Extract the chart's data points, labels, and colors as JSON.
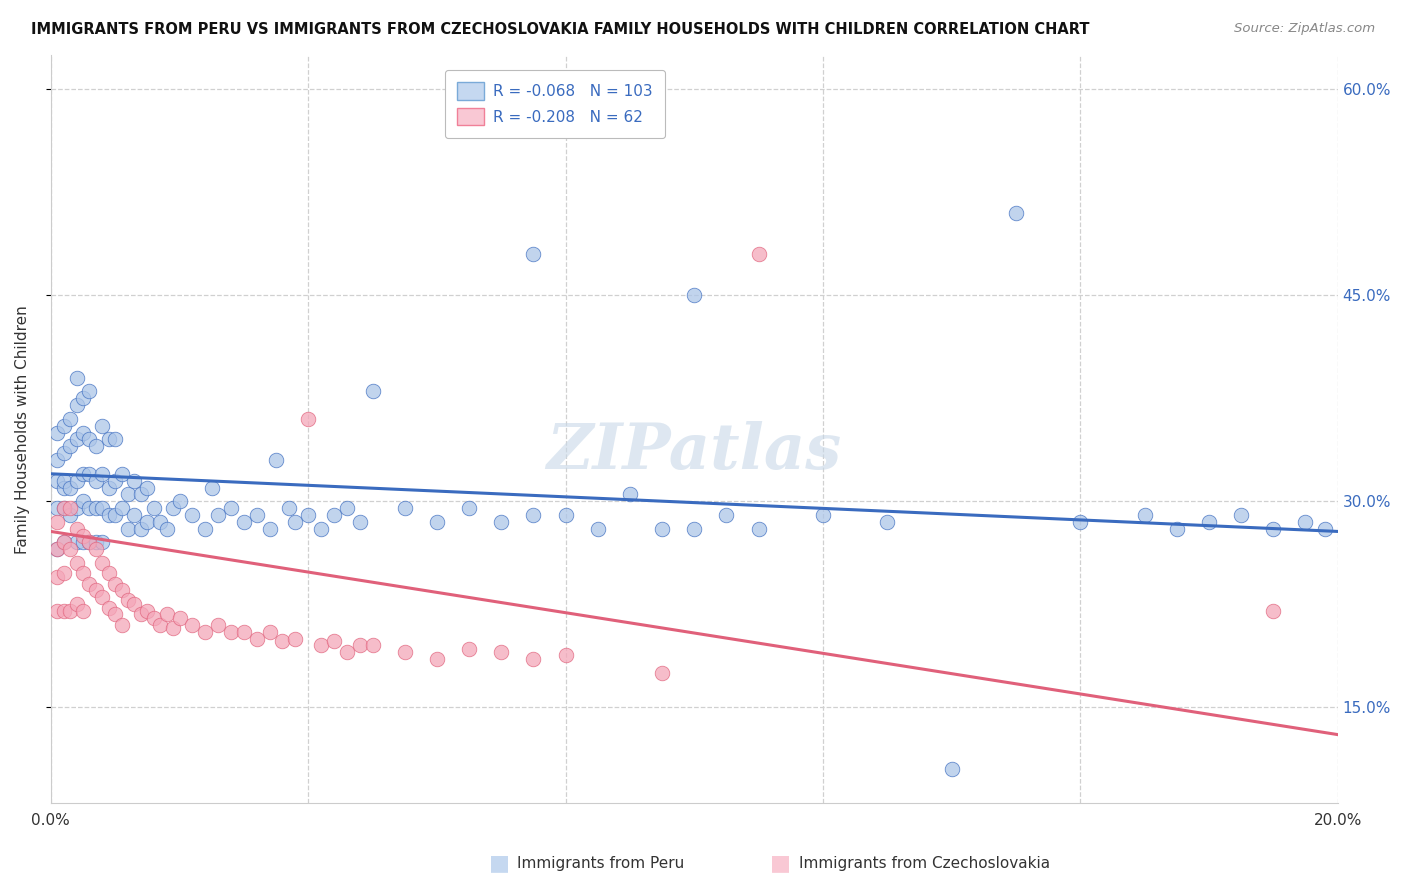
{
  "title": "IMMIGRANTS FROM PERU VS IMMIGRANTS FROM CZECHOSLOVAKIA FAMILY HOUSEHOLDS WITH CHILDREN CORRELATION CHART",
  "source": "Source: ZipAtlas.com",
  "xlabel_blue": "Immigrants from Peru",
  "xlabel_pink": "Immigrants from Czechoslovakia",
  "ylabel": "Family Households with Children",
  "r_blue": -0.068,
  "n_blue": 103,
  "r_pink": -0.208,
  "n_pink": 62,
  "xlim": [
    0.0,
    0.2
  ],
  "ylim": [
    0.08,
    0.625
  ],
  "xticks": [
    0.0,
    0.04,
    0.08,
    0.12,
    0.16,
    0.2
  ],
  "yticks": [
    0.15,
    0.3,
    0.45,
    0.6
  ],
  "color_blue": "#adc6e8",
  "color_pink": "#f4a7b9",
  "line_color_blue": "#3a6bbf",
  "line_color_pink": "#e0607a",
  "legend_facecolor_blue": "#c5d8f0",
  "legend_facecolor_pink": "#f9c8d4",
  "legend_edgecolor_blue": "#7aaad8",
  "legend_edgecolor_pink": "#f08098",
  "watermark": "ZIPatlas",
  "background_color": "#ffffff",
  "grid_color": "#d0d0d0",
  "blue_scatter_x": [
    0.001,
    0.001,
    0.001,
    0.001,
    0.001,
    0.002,
    0.002,
    0.002,
    0.002,
    0.002,
    0.002,
    0.003,
    0.003,
    0.003,
    0.003,
    0.004,
    0.004,
    0.004,
    0.004,
    0.004,
    0.004,
    0.005,
    0.005,
    0.005,
    0.005,
    0.005,
    0.006,
    0.006,
    0.006,
    0.006,
    0.006,
    0.007,
    0.007,
    0.007,
    0.007,
    0.008,
    0.008,
    0.008,
    0.008,
    0.009,
    0.009,
    0.009,
    0.01,
    0.01,
    0.01,
    0.011,
    0.011,
    0.012,
    0.012,
    0.013,
    0.013,
    0.014,
    0.014,
    0.015,
    0.015,
    0.016,
    0.017,
    0.018,
    0.019,
    0.02,
    0.022,
    0.024,
    0.025,
    0.026,
    0.028,
    0.03,
    0.032,
    0.034,
    0.035,
    0.037,
    0.038,
    0.04,
    0.042,
    0.044,
    0.046,
    0.048,
    0.05,
    0.055,
    0.06,
    0.065,
    0.07,
    0.075,
    0.08,
    0.085,
    0.09,
    0.095,
    0.1,
    0.105,
    0.11,
    0.12,
    0.13,
    0.14,
    0.15,
    0.16,
    0.17,
    0.175,
    0.18,
    0.185,
    0.19,
    0.195,
    0.198,
    0.1,
    0.075
  ],
  "blue_scatter_y": [
    0.315,
    0.33,
    0.35,
    0.295,
    0.265,
    0.31,
    0.335,
    0.355,
    0.295,
    0.27,
    0.315,
    0.31,
    0.34,
    0.36,
    0.29,
    0.315,
    0.345,
    0.37,
    0.295,
    0.27,
    0.39,
    0.32,
    0.35,
    0.375,
    0.3,
    0.27,
    0.32,
    0.345,
    0.295,
    0.27,
    0.38,
    0.315,
    0.34,
    0.295,
    0.27,
    0.32,
    0.355,
    0.295,
    0.27,
    0.31,
    0.345,
    0.29,
    0.315,
    0.345,
    0.29,
    0.32,
    0.295,
    0.305,
    0.28,
    0.315,
    0.29,
    0.305,
    0.28,
    0.31,
    0.285,
    0.295,
    0.285,
    0.28,
    0.295,
    0.3,
    0.29,
    0.28,
    0.31,
    0.29,
    0.295,
    0.285,
    0.29,
    0.28,
    0.33,
    0.295,
    0.285,
    0.29,
    0.28,
    0.29,
    0.295,
    0.285,
    0.38,
    0.295,
    0.285,
    0.295,
    0.285,
    0.29,
    0.29,
    0.28,
    0.305,
    0.28,
    0.28,
    0.29,
    0.28,
    0.29,
    0.285,
    0.105,
    0.51,
    0.285,
    0.29,
    0.28,
    0.285,
    0.29,
    0.28,
    0.285,
    0.28,
    0.45,
    0.48
  ],
  "pink_scatter_x": [
    0.001,
    0.001,
    0.001,
    0.001,
    0.002,
    0.002,
    0.002,
    0.002,
    0.003,
    0.003,
    0.003,
    0.004,
    0.004,
    0.004,
    0.005,
    0.005,
    0.005,
    0.006,
    0.006,
    0.007,
    0.007,
    0.008,
    0.008,
    0.009,
    0.009,
    0.01,
    0.01,
    0.011,
    0.011,
    0.012,
    0.013,
    0.014,
    0.015,
    0.016,
    0.017,
    0.018,
    0.019,
    0.02,
    0.022,
    0.024,
    0.026,
    0.028,
    0.03,
    0.032,
    0.034,
    0.036,
    0.038,
    0.04,
    0.042,
    0.044,
    0.046,
    0.048,
    0.05,
    0.055,
    0.06,
    0.065,
    0.07,
    0.075,
    0.08,
    0.19,
    0.095,
    0.11
  ],
  "pink_scatter_y": [
    0.285,
    0.265,
    0.245,
    0.22,
    0.295,
    0.27,
    0.248,
    0.22,
    0.295,
    0.265,
    0.22,
    0.28,
    0.255,
    0.225,
    0.275,
    0.248,
    0.22,
    0.27,
    0.24,
    0.265,
    0.235,
    0.255,
    0.23,
    0.248,
    0.222,
    0.24,
    0.218,
    0.235,
    0.21,
    0.228,
    0.225,
    0.218,
    0.22,
    0.215,
    0.21,
    0.218,
    0.208,
    0.215,
    0.21,
    0.205,
    0.21,
    0.205,
    0.205,
    0.2,
    0.205,
    0.198,
    0.2,
    0.36,
    0.195,
    0.198,
    0.19,
    0.195,
    0.195,
    0.19,
    0.185,
    0.192,
    0.19,
    0.185,
    0.188,
    0.22,
    0.175,
    0.48
  ]
}
